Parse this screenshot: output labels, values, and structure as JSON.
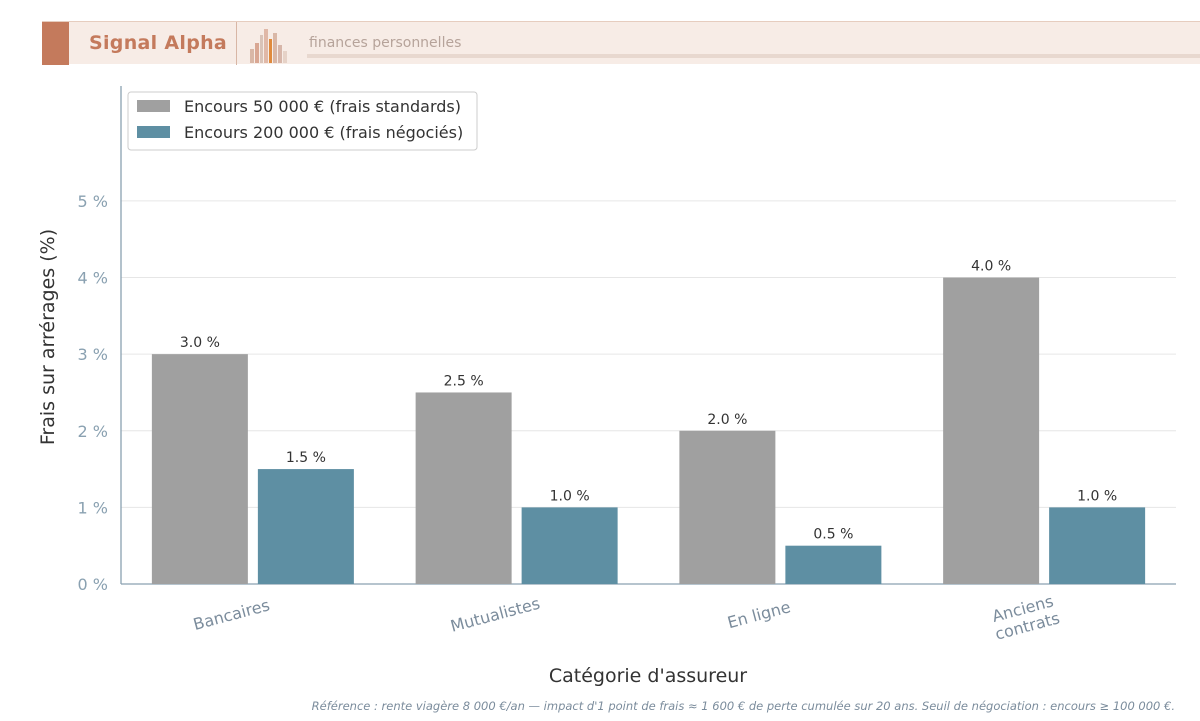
{
  "header": {
    "brand": "Signal Alpha",
    "tagline": "finances personnelles"
  },
  "colors": {
    "accent": "#c47a5c",
    "series_standard": "#a0a0a0",
    "series_negotiated": "#5e8fa3",
    "axis": "#8aa1b1"
  },
  "chart_data": {
    "type": "bar",
    "categories": [
      "Bancaires",
      "Mutualistes",
      "En ligne",
      "Anciens\ncontrats"
    ],
    "series": [
      {
        "name": "Encours 50 000 € (frais standards)",
        "values": [
          3.0,
          2.5,
          2.0,
          4.0
        ],
        "labels": [
          "3.0 %",
          "2.5 %",
          "2.0 %",
          "4.0 %"
        ]
      },
      {
        "name": "Encours 200 000 € (frais négociés)",
        "values": [
          1.5,
          1.0,
          0.5,
          1.0
        ],
        "labels": [
          "1.5 %",
          "1.0 %",
          "0.5 %",
          "1.0 %"
        ]
      }
    ],
    "ylabel": "Frais sur arrérages (%)",
    "xlabel": "Catégorie d'assureur",
    "ylim": [
      0,
      6.5
    ],
    "yticks": [
      0,
      1,
      2,
      3,
      4,
      5
    ],
    "ytick_labels": [
      "0 %",
      "1 %",
      "2 %",
      "3 %",
      "4 %",
      "5 %"
    ],
    "grid": true,
    "legend_position": "top-left"
  },
  "note": "Référence : rente viagère 8 000 €/an — impact d'1 point de frais ≈ 1 600 € de perte cumulée sur 20 ans. Seuil de négociation : encours ≥ 100 000 €."
}
